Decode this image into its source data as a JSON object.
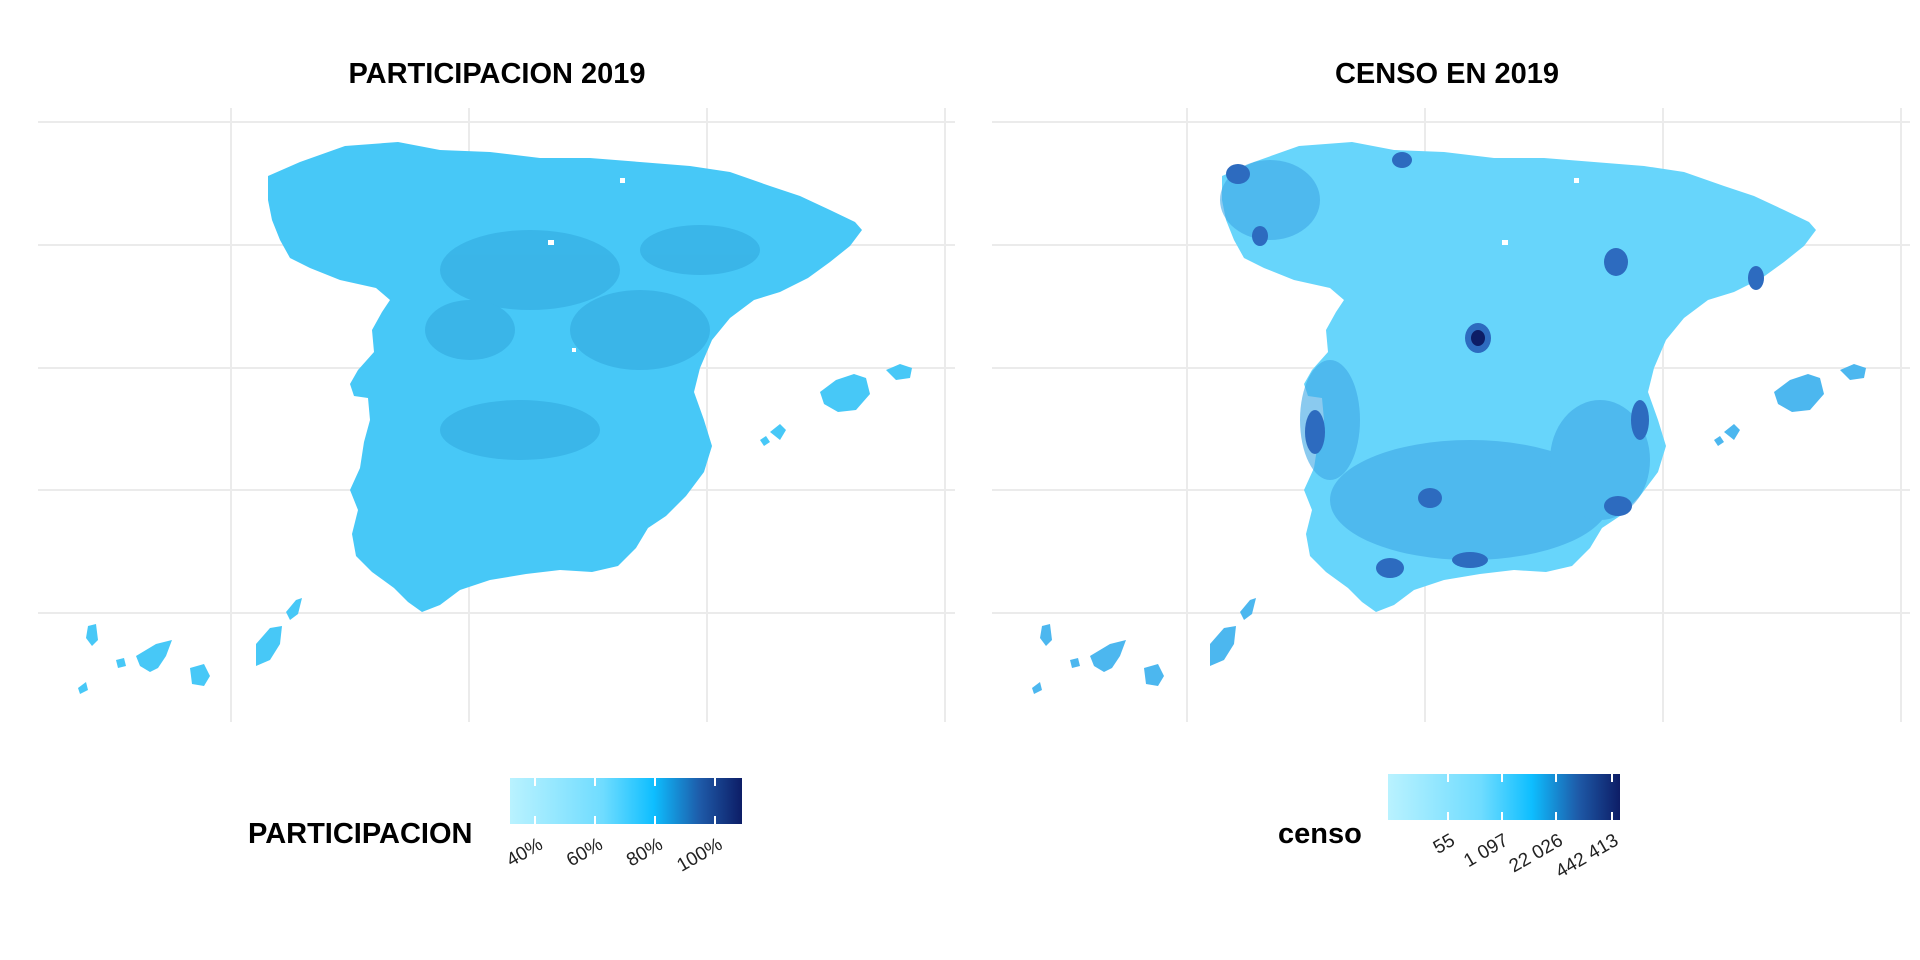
{
  "panels": [
    {
      "title": "PARTICIPACION 2019",
      "legend": {
        "title": "PARTICIPACION",
        "ticks": [
          "40%",
          "60%",
          "80%",
          "100%"
        ],
        "colors": [
          "#b9f2ff",
          "#6fdcff",
          "#0ebeff",
          "#1e5aa8",
          "#0d1d66"
        ]
      }
    },
    {
      "title": "CENSO EN 2019",
      "legend": {
        "title": "censo",
        "ticks": [
          "55",
          "1 097",
          "22 026",
          "442 413"
        ],
        "colors": [
          "#b9f2ff",
          "#6fdcff",
          "#0ebeff",
          "#1e5aa8",
          "#0d1d66"
        ]
      }
    }
  ],
  "map_colors": {
    "participacion_fill": "#47c8f7",
    "participacion_dark": "#2b9fd8",
    "censo_fill": "#67d5fb",
    "censo_dark": "#2d6bbf",
    "grid": "#ebebeb"
  }
}
